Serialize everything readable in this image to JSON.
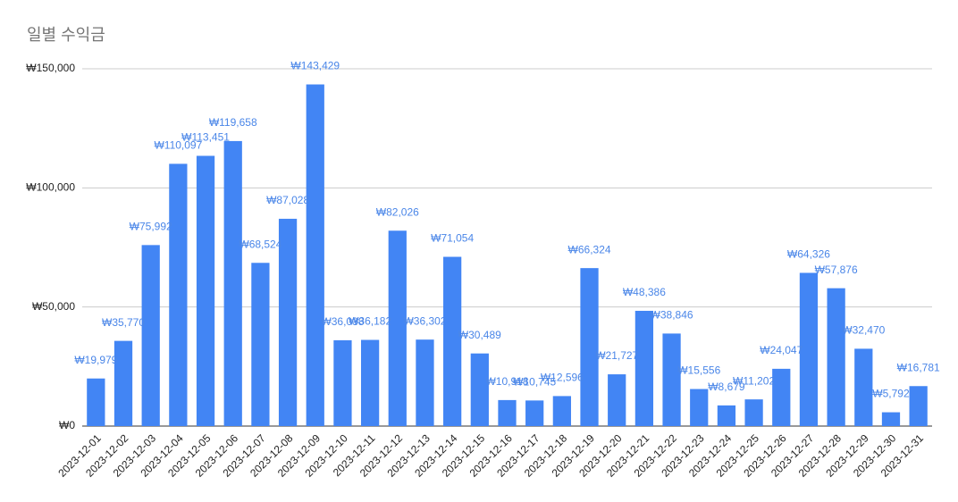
{
  "chart_data": {
    "type": "bar",
    "title": "일별 수익금",
    "categories": [
      "2023-12-01",
      "2023-12-02",
      "2023-12-03",
      "2023-12-04",
      "2023-12-05",
      "2023-12-06",
      "2023-12-07",
      "2023-12-08",
      "2023-12-09",
      "2023-12-10",
      "2023-12-11",
      "2023-12-12",
      "2023-12-13",
      "2023-12-14",
      "2023-12-15",
      "2023-12-16",
      "2023-12-17",
      "2023-12-18",
      "2023-12-19",
      "2023-12-20",
      "2023-12-21",
      "2023-12-22",
      "2023-12-23",
      "2023-12-24",
      "2023-12-25",
      "2023-12-26",
      "2023-12-27",
      "2023-12-28",
      "2023-12-29",
      "2023-12-30",
      "2023-12-31"
    ],
    "values": [
      19979,
      35770,
      75992,
      110097,
      113451,
      119658,
      68524,
      87028,
      143429,
      36038,
      36182,
      82026,
      36302,
      71054,
      30489,
      10918,
      10745,
      12596,
      66324,
      21727,
      48386,
      38846,
      15556,
      8679,
      11202,
      24047,
      64326,
      57876,
      32470,
      5792,
      16781
    ],
    "value_labels": [
      "₩19,979",
      "₩35,770",
      "₩75,992",
      "₩110,097",
      "₩113,451",
      "₩119,658",
      "₩68,524",
      "₩87,028",
      "₩143,429",
      "₩36,038",
      "₩36,182",
      "₩82,026",
      "₩36,302",
      "₩71,054",
      "₩30,489",
      "₩10,918",
      "₩10,745",
      "₩12,596",
      "₩66,324",
      "₩21,727",
      "₩48,386",
      "₩38,846",
      "₩15,556",
      "₩8,679",
      "₩11,202",
      "₩24,047",
      "₩64,326",
      "₩57,876",
      "₩32,470",
      "₩5,792",
      "₩16,781"
    ],
    "color": "#4285f4",
    "ylim": [
      0,
      150000
    ],
    "yticks": [
      {
        "value": 0,
        "label": "₩0"
      },
      {
        "value": 50000,
        "label": "₩50,000"
      },
      {
        "value": 100000,
        "label": "₩100,000"
      },
      {
        "value": 150000,
        "label": "₩150,000"
      }
    ],
    "grid": true
  }
}
